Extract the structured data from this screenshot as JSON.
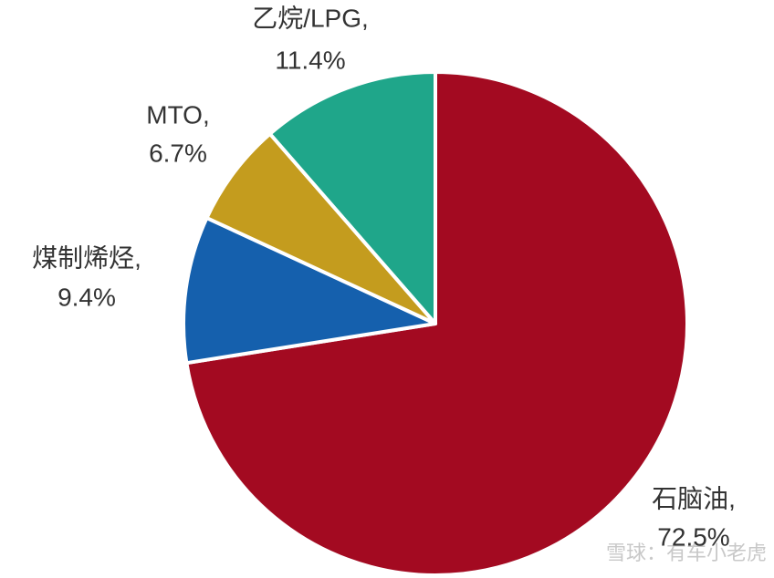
{
  "chart_data": {
    "type": "pie",
    "categories": [
      "石脑油,",
      "煤制烯烃,",
      "MTO,",
      "乙烷/LPG,"
    ],
    "values": [
      72.5,
      9.4,
      6.7,
      11.4
    ],
    "value_labels": [
      "72.5%",
      "9.4%",
      "6.7%",
      "11.4%"
    ],
    "colors": [
      "#a30a21",
      "#1560ad",
      "#c49c1e",
      "#1fa68a"
    ],
    "watermark": "雪球：有车小老虎"
  }
}
